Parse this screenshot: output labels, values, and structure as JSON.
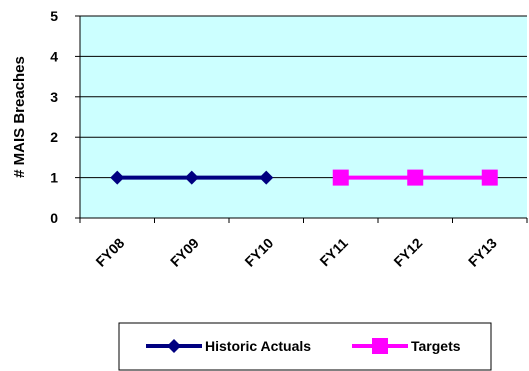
{
  "chart_data": {
    "type": "line",
    "title": "",
    "xlabel": "",
    "ylabel": "# MAIS Breaches",
    "categories": [
      "FY08",
      "FY09",
      "FY10",
      "FY11",
      "FY12",
      "FY13"
    ],
    "ylim": [
      0,
      5
    ],
    "yticks": [
      "0",
      "1",
      "2",
      "3",
      "4",
      "5"
    ],
    "grid": true,
    "legend_position": "bottom",
    "plot_background": "#ccffff",
    "series": [
      {
        "name": "Historic Actuals",
        "color": "#000080",
        "marker": "diamond",
        "values": [
          1,
          1,
          1,
          null,
          null,
          null
        ]
      },
      {
        "name": "Targets",
        "color": "#ff00ff",
        "marker": "square",
        "values": [
          null,
          null,
          null,
          1,
          1,
          1
        ]
      }
    ]
  }
}
